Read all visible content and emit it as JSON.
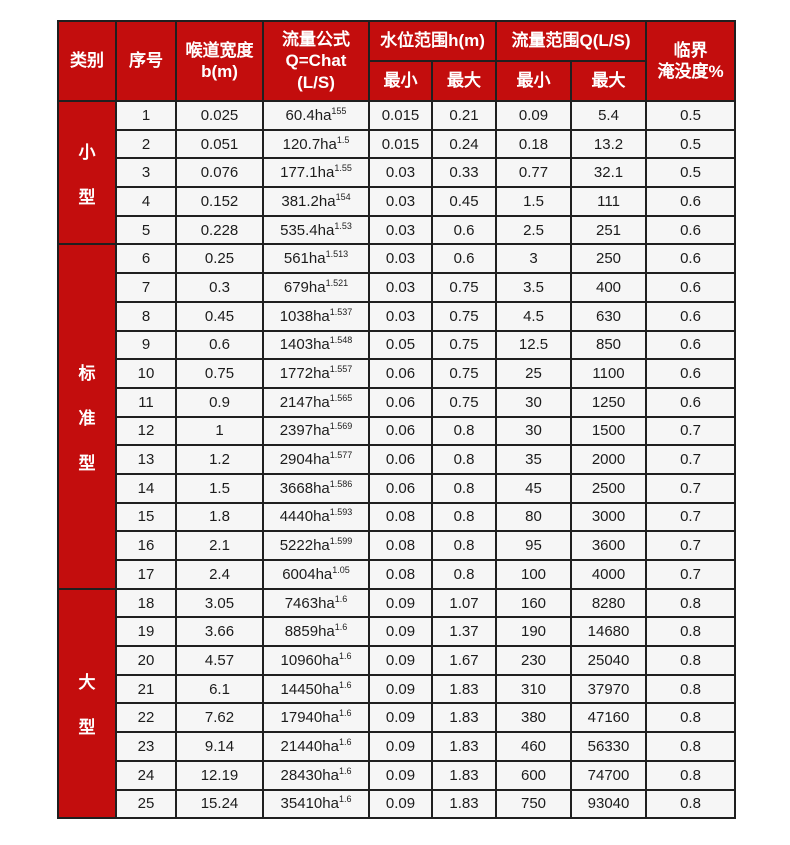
{
  "colors": {
    "header_bg": "#c30d0d",
    "header_text": "#ffffff",
    "cell_bg": "#f6f6f6",
    "cell_text": "#1c1c1c",
    "border": "#1f1f1f",
    "page_bg": "#ffffff"
  },
  "table": {
    "header": {
      "category": "类别",
      "serial": "序号",
      "throat_width_line1": "喉道宽度",
      "throat_width_line2": "b(m)",
      "formula_line1": "流量公式",
      "formula_line2": "Q=Chat",
      "formula_line3": "(L/S)",
      "level_range_group": "水位范围h(m)",
      "flow_range_group": "流量范围Q(L/S)",
      "min_label_level": "最小",
      "max_label_level": "最大",
      "min_label_flow": "最小",
      "max_label_flow": "最大",
      "critical_line1": "临界",
      "critical_line2": "淹没度%"
    },
    "categories": [
      {
        "label": "小型",
        "span": 5
      },
      {
        "label": "标准型",
        "span": 12
      },
      {
        "label": "大型",
        "span": 8
      }
    ],
    "rows": [
      {
        "no": "1",
        "b": "0.025",
        "formula_base": "60.4ha",
        "formula_exp": "155",
        "h_min": "0.015",
        "h_max": "0.21",
        "q_min": "0.09",
        "q_max": "5.4",
        "sub": "0.5"
      },
      {
        "no": "2",
        "b": "0.051",
        "formula_base": "120.7ha",
        "formula_exp": "1.5",
        "h_min": "0.015",
        "h_max": "0.24",
        "q_min": "0.18",
        "q_max": "13.2",
        "sub": "0.5"
      },
      {
        "no": "3",
        "b": "0.076",
        "formula_base": "177.1ha",
        "formula_exp": "1.55",
        "h_min": "0.03",
        "h_max": "0.33",
        "q_min": "0.77",
        "q_max": "32.1",
        "sub": "0.5"
      },
      {
        "no": "4",
        "b": "0.152",
        "formula_base": "381.2ha",
        "formula_exp": "154",
        "h_min": "0.03",
        "h_max": "0.45",
        "q_min": "1.5",
        "q_max": "111",
        "sub": "0.6"
      },
      {
        "no": "5",
        "b": "0.228",
        "formula_base": "535.4ha",
        "formula_exp": "1.53",
        "h_min": "0.03",
        "h_max": "0.6",
        "q_min": "2.5",
        "q_max": "251",
        "sub": "0.6"
      },
      {
        "no": "6",
        "b": "0.25",
        "formula_base": "561ha",
        "formula_exp": "1.513",
        "h_min": "0.03",
        "h_max": "0.6",
        "q_min": "3",
        "q_max": "250",
        "sub": "0.6"
      },
      {
        "no": "7",
        "b": "0.3",
        "formula_base": "679ha",
        "formula_exp": "1.521",
        "h_min": "0.03",
        "h_max": "0.75",
        "q_min": "3.5",
        "q_max": "400",
        "sub": "0.6"
      },
      {
        "no": "8",
        "b": "0.45",
        "formula_base": "1038ha",
        "formula_exp": "1.537",
        "h_min": "0.03",
        "h_max": "0.75",
        "q_min": "4.5",
        "q_max": "630",
        "sub": "0.6"
      },
      {
        "no": "9",
        "b": "0.6",
        "formula_base": "1403ha",
        "formula_exp": "1.548",
        "h_min": "0.05",
        "h_max": "0.75",
        "q_min": "12.5",
        "q_max": "850",
        "sub": "0.6"
      },
      {
        "no": "10",
        "b": "0.75",
        "formula_base": "1772ha",
        "formula_exp": "1.557",
        "h_min": "0.06",
        "h_max": "0.75",
        "q_min": "25",
        "q_max": "1100",
        "sub": "0.6"
      },
      {
        "no": "11",
        "b": "0.9",
        "formula_base": "2147ha",
        "formula_exp": "1.565",
        "h_min": "0.06",
        "h_max": "0.75",
        "q_min": "30",
        "q_max": "1250",
        "sub": "0.6"
      },
      {
        "no": "12",
        "b": "1",
        "formula_base": "2397ha",
        "formula_exp": "1.569",
        "h_min": "0.06",
        "h_max": "0.8",
        "q_min": "30",
        "q_max": "1500",
        "sub": "0.7"
      },
      {
        "no": "13",
        "b": "1.2",
        "formula_base": "2904ha",
        "formula_exp": "1.577",
        "h_min": "0.06",
        "h_max": "0.8",
        "q_min": "35",
        "q_max": "2000",
        "sub": "0.7"
      },
      {
        "no": "14",
        "b": "1.5",
        "formula_base": "3668ha",
        "formula_exp": "1.586",
        "h_min": "0.06",
        "h_max": "0.8",
        "q_min": "45",
        "q_max": "2500",
        "sub": "0.7"
      },
      {
        "no": "15",
        "b": "1.8",
        "formula_base": "4440ha",
        "formula_exp": "1.593",
        "h_min": "0.08",
        "h_max": "0.8",
        "q_min": "80",
        "q_max": "3000",
        "sub": "0.7"
      },
      {
        "no": "16",
        "b": "2.1",
        "formula_base": "5222ha",
        "formula_exp": "1.599",
        "h_min": "0.08",
        "h_max": "0.8",
        "q_min": "95",
        "q_max": "3600",
        "sub": "0.7"
      },
      {
        "no": "17",
        "b": "2.4",
        "formula_base": "6004ha",
        "formula_exp": "1.05",
        "h_min": "0.08",
        "h_max": "0.8",
        "q_min": "100",
        "q_max": "4000",
        "sub": "0.7"
      },
      {
        "no": "18",
        "b": "3.05",
        "formula_base": "7463ha",
        "formula_exp": "1.6",
        "h_min": "0.09",
        "h_max": "1.07",
        "q_min": "160",
        "q_max": "8280",
        "sub": "0.8"
      },
      {
        "no": "19",
        "b": "3.66",
        "formula_base": "8859ha",
        "formula_exp": "1.6",
        "h_min": "0.09",
        "h_max": "1.37",
        "q_min": "190",
        "q_max": "14680",
        "sub": "0.8"
      },
      {
        "no": "20",
        "b": "4.57",
        "formula_base": "10960ha",
        "formula_exp": "1.6",
        "h_min": "0.09",
        "h_max": "1.67",
        "q_min": "230",
        "q_max": "25040",
        "sub": "0.8"
      },
      {
        "no": "21",
        "b": "6.1",
        "formula_base": "14450ha",
        "formula_exp": "1.6",
        "h_min": "0.09",
        "h_max": "1.83",
        "q_min": "310",
        "q_max": "37970",
        "sub": "0.8"
      },
      {
        "no": "22",
        "b": "7.62",
        "formula_base": "17940ha",
        "formula_exp": "1.6",
        "h_min": "0.09",
        "h_max": "1.83",
        "q_min": "380",
        "q_max": "47160",
        "sub": "0.8"
      },
      {
        "no": "23",
        "b": "9.14",
        "formula_base": "21440ha",
        "formula_exp": "1.6",
        "h_min": "0.09",
        "h_max": "1.83",
        "q_min": "460",
        "q_max": "56330",
        "sub": "0.8"
      },
      {
        "no": "24",
        "b": "12.19",
        "formula_base": "28430ha",
        "formula_exp": "1.6",
        "h_min": "0.09",
        "h_max": "1.83",
        "q_min": "600",
        "q_max": "74700",
        "sub": "0.8"
      },
      {
        "no": "25",
        "b": "15.24",
        "formula_base": "35410ha",
        "formula_exp": "1.6",
        "h_min": "0.09",
        "h_max": "1.83",
        "q_min": "750",
        "q_max": "93040",
        "sub": "0.8"
      }
    ]
  }
}
